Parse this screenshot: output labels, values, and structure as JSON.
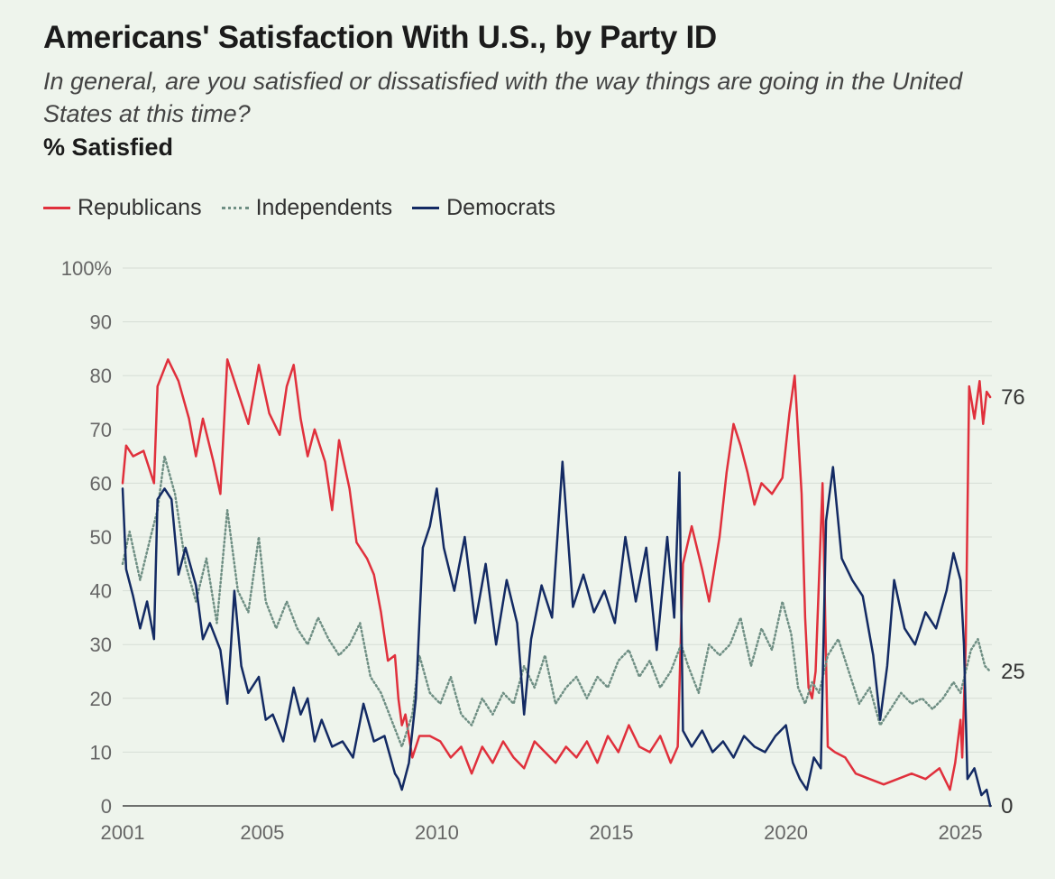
{
  "chart_data": {
    "type": "line",
    "title": "Americans' Satisfaction With U.S., by Party ID",
    "subtitle": "In general, are you satisfied or dissatisfied with the way things are going in the United States at this time?",
    "ylabel": "% Satisfied",
    "ylim": [
      0,
      100
    ],
    "y_ticks": [
      "0",
      "10",
      "20",
      "30",
      "40",
      "50",
      "60",
      "70",
      "80",
      "90",
      "100%"
    ],
    "xlim": [
      2001,
      2025.9
    ],
    "x_ticks": [
      {
        "value": 2001,
        "label": "2001"
      },
      {
        "value": 2005,
        "label": "2005"
      },
      {
        "value": 2010,
        "label": "2010"
      },
      {
        "value": 2015,
        "label": "2015"
      },
      {
        "value": 2020,
        "label": "2020"
      },
      {
        "value": 2025,
        "label": "2025"
      }
    ],
    "legend_position": "top-left",
    "series": [
      {
        "name": "Republicans",
        "color": "#e0303c",
        "style": "solid",
        "end_label": "76",
        "points": [
          [
            2001,
            60
          ],
          [
            2001.1,
            67
          ],
          [
            2001.3,
            65
          ],
          [
            2001.6,
            66
          ],
          [
            2001.9,
            60
          ],
          [
            2002.0,
            78
          ],
          [
            2002.3,
            83
          ],
          [
            2002.6,
            79
          ],
          [
            2002.9,
            72
          ],
          [
            2003.1,
            65
          ],
          [
            2003.3,
            72
          ],
          [
            2003.6,
            64
          ],
          [
            2003.8,
            58
          ],
          [
            2004.0,
            83
          ],
          [
            2004.3,
            77
          ],
          [
            2004.6,
            71
          ],
          [
            2004.9,
            82
          ],
          [
            2005.2,
            73
          ],
          [
            2005.5,
            69
          ],
          [
            2005.7,
            78
          ],
          [
            2005.9,
            82
          ],
          [
            2006.1,
            72
          ],
          [
            2006.3,
            65
          ],
          [
            2006.5,
            70
          ],
          [
            2006.8,
            64
          ],
          [
            2007.0,
            55
          ],
          [
            2007.2,
            68
          ],
          [
            2007.5,
            59
          ],
          [
            2007.7,
            49
          ],
          [
            2008.0,
            46
          ],
          [
            2008.2,
            43
          ],
          [
            2008.4,
            36
          ],
          [
            2008.6,
            27
          ],
          [
            2008.8,
            28
          ],
          [
            2008.9,
            20
          ],
          [
            2009.0,
            15
          ],
          [
            2009.1,
            17
          ],
          [
            2009.3,
            9
          ],
          [
            2009.5,
            13
          ],
          [
            2009.8,
            13
          ],
          [
            2010.1,
            12
          ],
          [
            2010.4,
            9
          ],
          [
            2010.7,
            11
          ],
          [
            2011.0,
            6
          ],
          [
            2011.3,
            11
          ],
          [
            2011.6,
            8
          ],
          [
            2011.9,
            12
          ],
          [
            2012.2,
            9
          ],
          [
            2012.5,
            7
          ],
          [
            2012.8,
            12
          ],
          [
            2013.1,
            10
          ],
          [
            2013.4,
            8
          ],
          [
            2013.7,
            11
          ],
          [
            2014.0,
            9
          ],
          [
            2014.3,
            12
          ],
          [
            2014.6,
            8
          ],
          [
            2014.9,
            13
          ],
          [
            2015.2,
            10
          ],
          [
            2015.5,
            15
          ],
          [
            2015.8,
            11
          ],
          [
            2016.1,
            10
          ],
          [
            2016.4,
            13
          ],
          [
            2016.7,
            8
          ],
          [
            2016.9,
            11
          ],
          [
            2017.05,
            45
          ],
          [
            2017.3,
            52
          ],
          [
            2017.6,
            44
          ],
          [
            2017.8,
            38
          ],
          [
            2018.1,
            50
          ],
          [
            2018.3,
            62
          ],
          [
            2018.5,
            71
          ],
          [
            2018.7,
            67
          ],
          [
            2018.9,
            62
          ],
          [
            2019.1,
            56
          ],
          [
            2019.3,
            60
          ],
          [
            2019.6,
            58
          ],
          [
            2019.9,
            61
          ],
          [
            2020.1,
            73
          ],
          [
            2020.25,
            80
          ],
          [
            2020.45,
            58
          ],
          [
            2020.55,
            35
          ],
          [
            2020.65,
            22
          ],
          [
            2020.75,
            20
          ],
          [
            2020.85,
            25
          ],
          [
            2021.05,
            60
          ],
          [
            2021.2,
            11
          ],
          [
            2021.4,
            10
          ],
          [
            2021.7,
            9
          ],
          [
            2022.0,
            6
          ],
          [
            2022.4,
            5
          ],
          [
            2022.8,
            4
          ],
          [
            2023.2,
            5
          ],
          [
            2023.6,
            6
          ],
          [
            2024.0,
            5
          ],
          [
            2024.4,
            7
          ],
          [
            2024.7,
            3
          ],
          [
            2024.85,
            8
          ],
          [
            2025.0,
            16
          ],
          [
            2025.05,
            9
          ],
          [
            2025.15,
            30
          ],
          [
            2025.25,
            78
          ],
          [
            2025.4,
            72
          ],
          [
            2025.55,
            79
          ],
          [
            2025.65,
            71
          ],
          [
            2025.75,
            77
          ],
          [
            2025.85,
            76
          ]
        ]
      },
      {
        "name": "Independents",
        "color": "#6f8f84",
        "style": "dotted",
        "end_label": "25",
        "points": [
          [
            2001,
            45
          ],
          [
            2001.2,
            51
          ],
          [
            2001.5,
            42
          ],
          [
            2001.8,
            50
          ],
          [
            2002.0,
            55
          ],
          [
            2002.2,
            65
          ],
          [
            2002.5,
            58
          ],
          [
            2002.8,
            45
          ],
          [
            2003.1,
            38
          ],
          [
            2003.4,
            46
          ],
          [
            2003.7,
            34
          ],
          [
            2004.0,
            55
          ],
          [
            2004.3,
            40
          ],
          [
            2004.6,
            36
          ],
          [
            2004.9,
            50
          ],
          [
            2005.1,
            38
          ],
          [
            2005.4,
            33
          ],
          [
            2005.7,
            38
          ],
          [
            2006.0,
            33
          ],
          [
            2006.3,
            30
          ],
          [
            2006.6,
            35
          ],
          [
            2006.9,
            31
          ],
          [
            2007.2,
            28
          ],
          [
            2007.5,
            30
          ],
          [
            2007.8,
            34
          ],
          [
            2008.1,
            24
          ],
          [
            2008.4,
            21
          ],
          [
            2008.7,
            16
          ],
          [
            2009.0,
            11
          ],
          [
            2009.3,
            17
          ],
          [
            2009.5,
            28
          ],
          [
            2009.8,
            21
          ],
          [
            2010.1,
            19
          ],
          [
            2010.4,
            24
          ],
          [
            2010.7,
            17
          ],
          [
            2011.0,
            15
          ],
          [
            2011.3,
            20
          ],
          [
            2011.6,
            17
          ],
          [
            2011.9,
            21
          ],
          [
            2012.2,
            19
          ],
          [
            2012.5,
            26
          ],
          [
            2012.8,
            22
          ],
          [
            2013.1,
            28
          ],
          [
            2013.4,
            19
          ],
          [
            2013.7,
            22
          ],
          [
            2014.0,
            24
          ],
          [
            2014.3,
            20
          ],
          [
            2014.6,
            24
          ],
          [
            2014.9,
            22
          ],
          [
            2015.2,
            27
          ],
          [
            2015.5,
            29
          ],
          [
            2015.8,
            24
          ],
          [
            2016.1,
            27
          ],
          [
            2016.4,
            22
          ],
          [
            2016.7,
            25
          ],
          [
            2017.0,
            30
          ],
          [
            2017.2,
            26
          ],
          [
            2017.5,
            21
          ],
          [
            2017.8,
            30
          ],
          [
            2018.1,
            28
          ],
          [
            2018.4,
            30
          ],
          [
            2018.7,
            35
          ],
          [
            2019.0,
            26
          ],
          [
            2019.3,
            33
          ],
          [
            2019.6,
            29
          ],
          [
            2019.9,
            38
          ],
          [
            2020.15,
            32
          ],
          [
            2020.35,
            22
          ],
          [
            2020.55,
            19
          ],
          [
            2020.75,
            23
          ],
          [
            2020.95,
            21
          ],
          [
            2021.2,
            28
          ],
          [
            2021.5,
            31
          ],
          [
            2021.8,
            25
          ],
          [
            2022.1,
            19
          ],
          [
            2022.4,
            22
          ],
          [
            2022.7,
            15
          ],
          [
            2023.0,
            18
          ],
          [
            2023.3,
            21
          ],
          [
            2023.6,
            19
          ],
          [
            2023.9,
            20
          ],
          [
            2024.2,
            18
          ],
          [
            2024.5,
            20
          ],
          [
            2024.8,
            23
          ],
          [
            2025.0,
            21
          ],
          [
            2025.3,
            29
          ],
          [
            2025.5,
            31
          ],
          [
            2025.7,
            26
          ],
          [
            2025.85,
            25
          ]
        ]
      },
      {
        "name": "Democrats",
        "color": "#132a63",
        "style": "solid",
        "end_label": "0",
        "points": [
          [
            2001,
            59
          ],
          [
            2001.1,
            44
          ],
          [
            2001.3,
            39
          ],
          [
            2001.5,
            33
          ],
          [
            2001.7,
            38
          ],
          [
            2001.9,
            31
          ],
          [
            2002.0,
            57
          ],
          [
            2002.2,
            59
          ],
          [
            2002.4,
            57
          ],
          [
            2002.6,
            43
          ],
          [
            2002.8,
            48
          ],
          [
            2003.1,
            41
          ],
          [
            2003.3,
            31
          ],
          [
            2003.5,
            34
          ],
          [
            2003.8,
            29
          ],
          [
            2004.0,
            19
          ],
          [
            2004.2,
            40
          ],
          [
            2004.4,
            26
          ],
          [
            2004.6,
            21
          ],
          [
            2004.9,
            24
          ],
          [
            2005.1,
            16
          ],
          [
            2005.3,
            17
          ],
          [
            2005.6,
            12
          ],
          [
            2005.9,
            22
          ],
          [
            2006.1,
            17
          ],
          [
            2006.3,
            20
          ],
          [
            2006.5,
            12
          ],
          [
            2006.7,
            16
          ],
          [
            2007.0,
            11
          ],
          [
            2007.3,
            12
          ],
          [
            2007.6,
            9
          ],
          [
            2007.9,
            19
          ],
          [
            2008.2,
            12
          ],
          [
            2008.5,
            13
          ],
          [
            2008.8,
            6
          ],
          [
            2008.9,
            5
          ],
          [
            2009.0,
            3
          ],
          [
            2009.2,
            8
          ],
          [
            2009.4,
            20
          ],
          [
            2009.6,
            48
          ],
          [
            2009.8,
            52
          ],
          [
            2010.0,
            59
          ],
          [
            2010.2,
            48
          ],
          [
            2010.5,
            40
          ],
          [
            2010.8,
            50
          ],
          [
            2011.1,
            34
          ],
          [
            2011.4,
            45
          ],
          [
            2011.7,
            30
          ],
          [
            2012.0,
            42
          ],
          [
            2012.3,
            34
          ],
          [
            2012.5,
            17
          ],
          [
            2012.7,
            31
          ],
          [
            2013.0,
            41
          ],
          [
            2013.3,
            35
          ],
          [
            2013.6,
            64
          ],
          [
            2013.9,
            37
          ],
          [
            2014.2,
            43
          ],
          [
            2014.5,
            36
          ],
          [
            2014.8,
            40
          ],
          [
            2015.1,
            34
          ],
          [
            2015.4,
            50
          ],
          [
            2015.7,
            38
          ],
          [
            2016.0,
            48
          ],
          [
            2016.3,
            29
          ],
          [
            2016.6,
            50
          ],
          [
            2016.8,
            35
          ],
          [
            2016.95,
            62
          ],
          [
            2017.05,
            14
          ],
          [
            2017.3,
            11
          ],
          [
            2017.6,
            14
          ],
          [
            2017.9,
            10
          ],
          [
            2018.2,
            12
          ],
          [
            2018.5,
            9
          ],
          [
            2018.8,
            13
          ],
          [
            2019.1,
            11
          ],
          [
            2019.4,
            10
          ],
          [
            2019.7,
            13
          ],
          [
            2020.0,
            15
          ],
          [
            2020.2,
            8
          ],
          [
            2020.4,
            5
          ],
          [
            2020.6,
            3
          ],
          [
            2020.8,
            9
          ],
          [
            2021.0,
            7
          ],
          [
            2021.15,
            53
          ],
          [
            2021.35,
            63
          ],
          [
            2021.6,
            46
          ],
          [
            2021.9,
            42
          ],
          [
            2022.2,
            39
          ],
          [
            2022.5,
            28
          ],
          [
            2022.7,
            16
          ],
          [
            2022.9,
            26
          ],
          [
            2023.1,
            42
          ],
          [
            2023.4,
            33
          ],
          [
            2023.7,
            30
          ],
          [
            2024.0,
            36
          ],
          [
            2024.3,
            33
          ],
          [
            2024.6,
            40
          ],
          [
            2024.8,
            47
          ],
          [
            2025.0,
            42
          ],
          [
            2025.1,
            30
          ],
          [
            2025.2,
            5
          ],
          [
            2025.4,
            7
          ],
          [
            2025.6,
            2
          ],
          [
            2025.75,
            3
          ],
          [
            2025.85,
            0
          ]
        ]
      }
    ]
  },
  "legend": [
    {
      "label": "Republicans",
      "kind": "rep"
    },
    {
      "label": "Independents",
      "kind": "ind"
    },
    {
      "label": "Democrats",
      "kind": "dem"
    }
  ]
}
